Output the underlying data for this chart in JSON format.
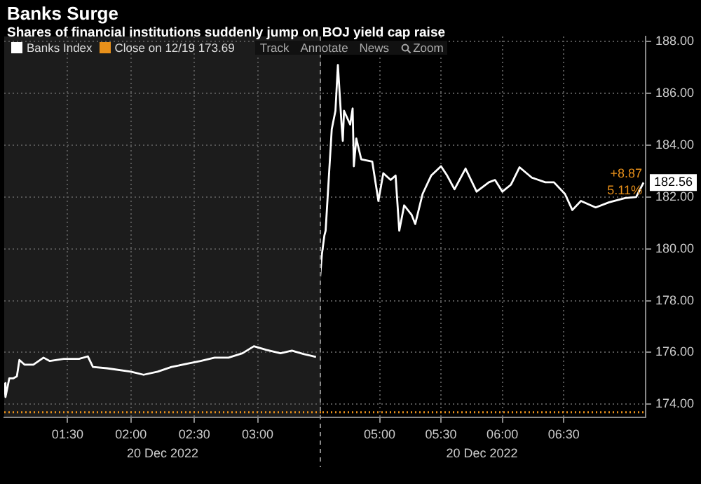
{
  "chart_data": [
    {
      "type": "line",
      "title": "Banks Surge",
      "subtitle": "Shares of financial institutions suddenly jump on BOJ yield cap raise",
      "xlabel": "20 Dec 2022",
      "legend": "top left",
      "marker": "none",
      "grid": true,
      "tick_labels": "x",
      "annotations": [
        "Track",
        "Annotate",
        "News",
        "Zoom"
      ],
      "xlim": [
        1.0,
        3.5
      ],
      "xticks": [
        {
          "value": 1.5,
          "label": "01:30"
        },
        {
          "value": 2.0,
          "label": "02:00"
        },
        {
          "value": 2.5,
          "label": "02:30"
        },
        {
          "value": 3.0,
          "label": "03:00"
        }
      ],
      "ylim": [
        173.5,
        188.2
      ],
      "yticks": [
        174,
        176,
        178,
        180,
        182,
        184,
        186,
        188
      ],
      "ref_lines": [
        {
          "axis": "y",
          "value": 173.69,
          "label": "Close on 12/19 173.69",
          "color": "#e8901a",
          "line_style": "dotted"
        }
      ],
      "series": [
        {
          "name": "Banks Index",
          "color": "#ffffff",
          "x": [
            1.0,
            1.01,
            1.04,
            1.07,
            1.1,
            1.12,
            1.16,
            1.23,
            1.31,
            1.36,
            1.47,
            1.59,
            1.66,
            1.7,
            1.81,
            2.0,
            2.1,
            2.21,
            2.32,
            2.44,
            2.55,
            2.66,
            2.77,
            2.88,
            2.97,
            3.07,
            3.18,
            3.27,
            3.36,
            3.46
          ],
          "values": [
            174.82,
            174.28,
            175.0,
            175.0,
            175.08,
            175.71,
            175.53,
            175.53,
            175.8,
            175.67,
            175.75,
            175.75,
            175.85,
            175.44,
            175.39,
            175.26,
            175.14,
            175.26,
            175.44,
            175.56,
            175.67,
            175.8,
            175.8,
            175.97,
            176.24,
            176.1,
            175.97,
            176.07,
            175.94,
            175.83
          ]
        }
      ]
    },
    {
      "type": "line",
      "xlabel": "20 Dec 2022",
      "marker": "none",
      "grid": true,
      "annotations": [
        {
          "text": "182.56",
          "x": 7.15,
          "y": 182.56
        },
        "+8.87",
        "5.11%"
      ],
      "xlim": [
        4.5,
        7.1667
      ],
      "xticks": [
        {
          "value": 5.0,
          "label": "05:00"
        },
        {
          "value": 5.5,
          "label": "05:30"
        },
        {
          "value": 6.0,
          "label": "06:00"
        },
        {
          "value": 6.5,
          "label": "06:30"
        }
      ],
      "ylim": [
        173.5,
        188.2
      ],
      "yticks": [
        {
          "value": 174,
          "label": "174.00"
        },
        {
          "value": 176,
          "label": "176.00"
        },
        {
          "value": 178,
          "label": "178.00"
        },
        {
          "value": 180,
          "label": "180.00"
        },
        {
          "value": 182,
          "label": "182.00"
        },
        {
          "value": 184,
          "label": "184.00"
        },
        {
          "value": 186,
          "label": "186.00"
        },
        {
          "value": 188,
          "label": "188.00"
        }
      ],
      "ref_lines": [
        {
          "axis": "y",
          "value": 173.69,
          "color": "#e8901a",
          "line_style": "dotted"
        }
      ],
      "series": [
        {
          "color": "#ffffff",
          "x": [
            4.5,
            4.53,
            4.55,
            4.56,
            4.61,
            4.64,
            4.66,
            4.69,
            4.7,
            4.71,
            4.76,
            4.78,
            4.79,
            4.81,
            4.85,
            4.94,
            4.99,
            5.03,
            5.09,
            5.13,
            5.16,
            5.2,
            5.26,
            5.29,
            5.35,
            5.42,
            5.5,
            5.55,
            5.61,
            5.7,
            5.79,
            5.89,
            5.94,
            6.0,
            6.07,
            6.14,
            6.24,
            6.35,
            6.42,
            6.51,
            6.57,
            6.64,
            6.76,
            6.87,
            7.0,
            7.09,
            7.15
          ],
          "values": [
            178.02,
            179.8,
            180.52,
            180.7,
            184.62,
            185.33,
            187.1,
            184.8,
            184.17,
            185.33,
            184.8,
            185.42,
            183.19,
            184.26,
            183.46,
            183.37,
            181.85,
            182.92,
            182.66,
            182.83,
            180.7,
            181.68,
            181.32,
            180.96,
            182.12,
            182.83,
            183.19,
            182.83,
            182.3,
            183.1,
            182.21,
            182.57,
            182.66,
            182.21,
            182.48,
            183.15,
            182.75,
            182.57,
            182.57,
            182.12,
            181.5,
            181.85,
            181.6,
            181.8,
            181.96,
            182.0,
            182.56
          ]
        }
      ]
    }
  ]
}
